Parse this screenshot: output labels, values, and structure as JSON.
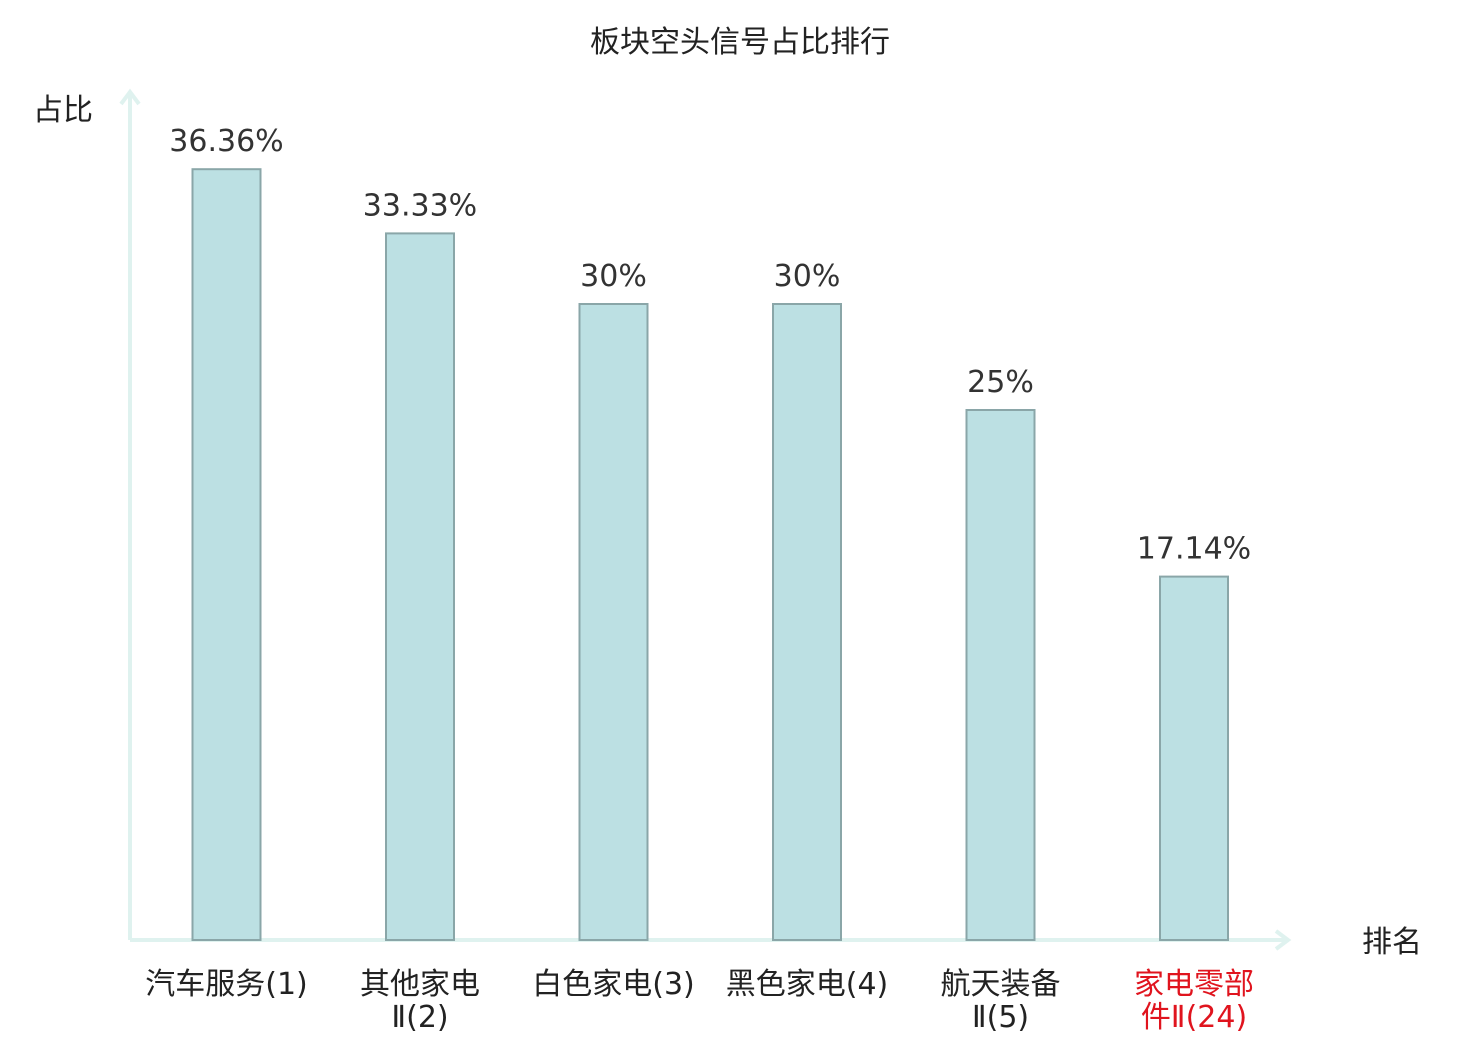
{
  "chart_data": {
    "type": "bar",
    "title": "板块空头信号占比排行",
    "ylabel": "占比",
    "xlabel": "排名",
    "ylim": [
      0,
      40
    ],
    "grid": false,
    "categories": [
      {
        "lines": [
          "汽车服务(1)"
        ],
        "highlight": false
      },
      {
        "lines": [
          "其他家电",
          "Ⅱ(2)"
        ],
        "highlight": false
      },
      {
        "lines": [
          "白色家电(3)"
        ],
        "highlight": false
      },
      {
        "lines": [
          "黑色家电(4)"
        ],
        "highlight": false
      },
      {
        "lines": [
          "航天装备",
          "Ⅱ(5)"
        ],
        "highlight": false
      },
      {
        "lines": [
          "家电零部",
          "件Ⅱ(24)"
        ],
        "highlight": true
      }
    ],
    "values": [
      36.36,
      33.33,
      30,
      30,
      25,
      17.14
    ],
    "value_labels": [
      "36.36%",
      "33.33%",
      "30%",
      "30%",
      "25%",
      "17.14%"
    ]
  },
  "colors": {
    "bar_fill": "#bce0e3",
    "bar_stroke": "#8aa6a8",
    "axis": "#dff2ef",
    "text": "#222222",
    "value_text": "#333333",
    "highlight_text": "#e0141e"
  }
}
